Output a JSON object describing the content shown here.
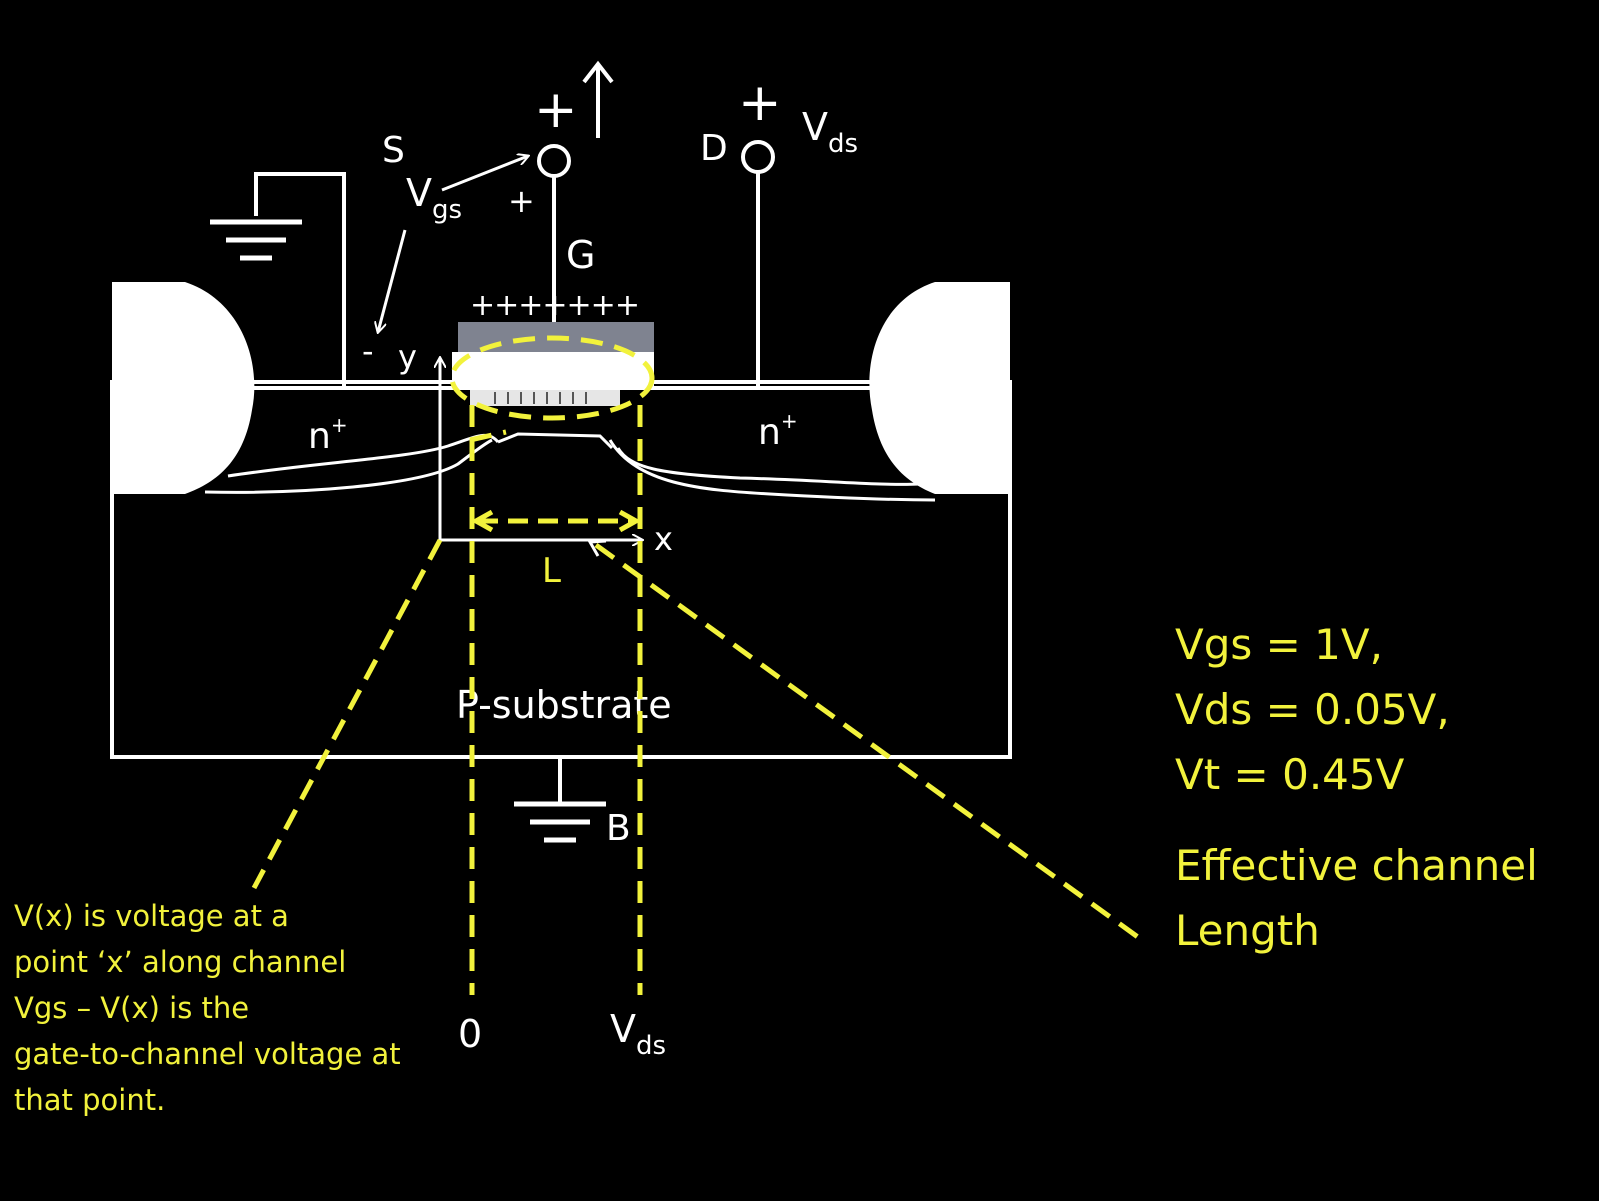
{
  "terminals": {
    "source": "S",
    "gate": "G",
    "drain": "D",
    "body": "B",
    "gate_plus": "+",
    "drain_plus": "+",
    "vgs_plus": "+",
    "vgs_minus": "-"
  },
  "labels": {
    "vgs_main": "V",
    "vgs_sub": "gs",
    "vds_main": "V",
    "vds_sub": "ds",
    "gate_charges": "+++++++",
    "n_plus_left": "n",
    "n_plus_left_sup": "+",
    "n_plus_right": "n",
    "n_plus_right_sup": "+",
    "substrate": "P-substrate",
    "axis_y": "y",
    "axis_x": "x",
    "length": "L",
    "axis_zero": "0",
    "axis_vds_main": "V",
    "axis_vds_sub": "ds"
  },
  "conditions": {
    "vgs": "Vgs = 1V,",
    "vds": "Vds = 0.05V,",
    "vt": "Vt = 0.45V"
  },
  "effective_channel": {
    "line1": "Effective channel",
    "line2": "Length"
  },
  "note": {
    "line1": "V(x) is voltage at a",
    "line2": "point ‘x’ along channel",
    "line3": "Vgs – V(x) is the",
    "line4": "gate-to-channel voltage at",
    "line5": "that point."
  },
  "colors": {
    "background": "#000000",
    "device": "#ffffff",
    "annotation": "#f2f23c",
    "oxide": "#7f8390"
  },
  "icons": {
    "source_ground": "ground-icon",
    "body_ground": "ground-icon",
    "current_arrow": "arrow-up-icon"
  }
}
